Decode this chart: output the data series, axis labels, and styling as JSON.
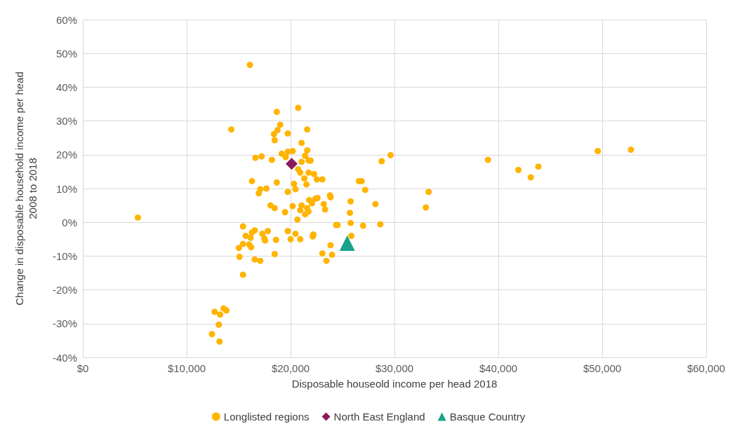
{
  "chart_data": {
    "type": "scatter",
    "xlabel": "Disposable houseold income per head 2018",
    "ylabel": "Change in disposable household income per head\n2008 to 2018",
    "xlim": [
      0,
      60000
    ],
    "ylim": [
      -40,
      60
    ],
    "xticks": [
      {
        "value": 0,
        "label": "$0"
      },
      {
        "value": 10000,
        "label": "$10,000"
      },
      {
        "value": 20000,
        "label": "$20,000"
      },
      {
        "value": 30000,
        "label": "$30,000"
      },
      {
        "value": 40000,
        "label": "$40,000"
      },
      {
        "value": 50000,
        "label": "$50,000"
      },
      {
        "value": 60000,
        "label": "$60,000"
      }
    ],
    "yticks": [
      {
        "value": -40,
        "label": "-40%"
      },
      {
        "value": -30,
        "label": "-30%"
      },
      {
        "value": -20,
        "label": "-20%"
      },
      {
        "value": -10,
        "label": "-10%"
      },
      {
        "value": 0,
        "label": "0%"
      },
      {
        "value": 10,
        "label": "10%"
      },
      {
        "value": 20,
        "label": "20%"
      },
      {
        "value": 30,
        "label": "30%"
      },
      {
        "value": 40,
        "label": "40%"
      },
      {
        "value": 50,
        "label": "50%"
      },
      {
        "value": 60,
        "label": "60%"
      }
    ],
    "grid": true,
    "legend": "bottom",
    "series": [
      {
        "name": "Longlisted regions",
        "color": "#ffb400",
        "marker": "circle",
        "x": [
          5300,
          16080,
          14290,
          18670,
          20730,
          19000,
          18740,
          18400,
          18470,
          19730,
          21600,
          21060,
          21600,
          19730,
          20200,
          19140,
          16610,
          17210,
          18200,
          19530,
          21400,
          21060,
          21730,
          21930,
          21730,
          22260,
          20730,
          20930,
          16280,
          18670,
          17080,
          16940,
          17670,
          19730,
          20330,
          20470,
          21330,
          21530,
          18070,
          18470,
          19470,
          20200,
          21060,
          20930,
          20660,
          21400,
          21730,
          21790,
          22060,
          22390,
          21600,
          15420,
          16550,
          16280,
          15680,
          16150,
          17280,
          17810,
          17480,
          17540,
          18600,
          19730,
          20470,
          20000,
          20930,
          22130,
          22190,
          15420,
          16010,
          16210,
          15020,
          15080,
          16550,
          17080,
          18470,
          15420,
          22530,
          23060,
          26580,
          26840,
          27180,
          33290,
          33020,
          22590,
          23790,
          23850,
          23190,
          23320,
          25780,
          28170,
          25710,
          24390,
          24520,
          25780,
          26980,
          28640,
          22190,
          25850,
          23850,
          23060,
          23990,
          23450,
          29630,
          28770,
          39000,
          41930,
          43120,
          43850,
          49570,
          52760,
          12690,
          13550,
          13820,
          13220,
          13090,
          12430,
          13160
        ],
        "values": [
          1.4,
          46.6,
          27.5,
          32.7,
          33.9,
          28.9,
          27.3,
          26.1,
          24.3,
          26.3,
          27.5,
          23.5,
          21.3,
          20.9,
          21.1,
          20.3,
          19.1,
          19.5,
          18.5,
          19.3,
          19.7,
          17.9,
          18.3,
          18.3,
          14.7,
          14.3,
          15.7,
          14.7,
          12.2,
          11.8,
          9.8,
          8.6,
          10.0,
          9.0,
          11.4,
          9.8,
          13.0,
          11.2,
          5.0,
          4.2,
          3.0,
          4.8,
          5.0,
          3.6,
          0.8,
          2.4,
          3.2,
          6.6,
          5.6,
          7.0,
          4.2,
          -1.2,
          -2.4,
          -3.0,
          -4.0,
          -4.6,
          -3.4,
          -2.6,
          -4.8,
          -5.4,
          -5.2,
          -2.6,
          -3.4,
          -5.0,
          -5.0,
          -4.2,
          -3.6,
          -6.4,
          -6.6,
          -7.4,
          -7.6,
          -10.2,
          -11.0,
          -11.4,
          -9.4,
          -15.5,
          12.7,
          12.7,
          12.2,
          12.2,
          9.6,
          9.0,
          4.4,
          7.2,
          8.0,
          7.4,
          5.4,
          3.8,
          6.2,
          5.4,
          2.8,
          -0.8,
          -0.8,
          -0.2,
          -1.0,
          -0.6,
          -3.8,
          -4.0,
          -6.8,
          -9.2,
          -9.6,
          -11.4,
          19.9,
          18.1,
          18.5,
          15.5,
          13.3,
          16.5,
          21.1,
          21.5,
          -26.5,
          -25.5,
          -26.1,
          -27.3,
          -30.3,
          -33.1,
          -35.3
        ]
      },
      {
        "name": "North East England",
        "color": "#8b1a5a",
        "marker": "diamond",
        "x": [
          20100
        ],
        "values": [
          17.3
        ]
      },
      {
        "name": "Basque Country",
        "color": "#1aa28c",
        "marker": "triangle",
        "x": [
          25450
        ],
        "values": [
          -6.2
        ]
      }
    ]
  }
}
